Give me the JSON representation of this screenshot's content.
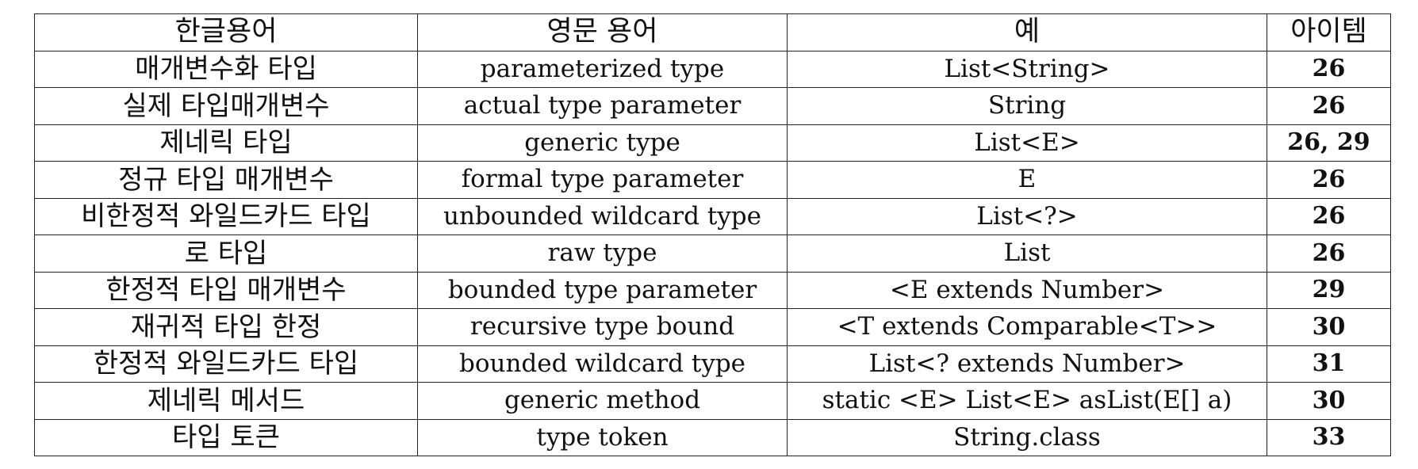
{
  "table": {
    "headers": [
      "한글용어",
      "영문 용어",
      "예",
      "아이템"
    ],
    "rows": [
      [
        "매개변수화 타입",
        "parameterized type",
        "List<String>",
        "26"
      ],
      [
        "실제 타입매개변수",
        "actual type parameter",
        "String",
        "26"
      ],
      [
        "제네릭 타입",
        "generic type",
        "List<E>",
        "26, 29"
      ],
      [
        "정규 타입 매개변수",
        "formal type parameter",
        "E",
        "26"
      ],
      [
        "비한정적 와일드카드 타입",
        "unbounded wildcard type",
        "List<?>",
        "26"
      ],
      [
        "로 타입",
        "raw type",
        "List",
        "26"
      ],
      [
        "한정적 타입 매개변수",
        "bounded type parameter",
        "<E extends Number>",
        "29"
      ],
      [
        "재귀적 타입 한정",
        "recursive type bound",
        "<T extends Comparable<T>>",
        "30"
      ],
      [
        "한정적 와일드카드 타입",
        "bounded wildcard type",
        "List<? extends Number>",
        "31"
      ],
      [
        "제네릭 메서드",
        "generic method",
        "static <E> List<E> asList(E[] a)",
        "30"
      ],
      [
        "타입 토큰",
        "type token",
        "String.class",
        "33"
      ]
    ]
  }
}
